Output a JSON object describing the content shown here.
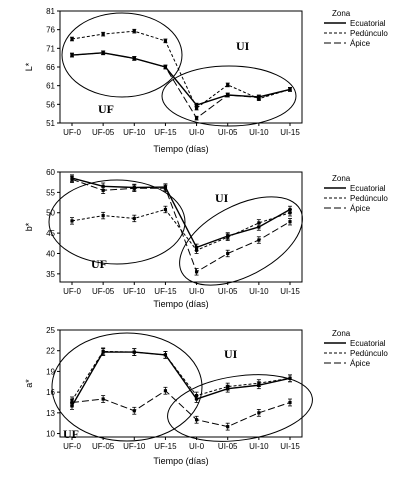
{
  "chart_data": [
    {
      "type": "line",
      "ylabel": "L*",
      "xlabel": "Tiempo (días)",
      "categories": [
        "UF-0",
        "UF-05",
        "UF-10",
        "UF-15",
        "UI-0",
        "UI-05",
        "UI-10",
        "UI-15"
      ],
      "ylim": [
        51,
        81
      ],
      "yticks": [
        51,
        56,
        61,
        66,
        71,
        76,
        81
      ],
      "legend_title": "Zona",
      "legend_position": "top-right",
      "zone_labels": [
        "UF",
        "UI"
      ],
      "series": [
        {
          "name": "Ecuatorial",
          "values": [
            69.2,
            69.8,
            68.3,
            66.0,
            55.8,
            58.5,
            58.0,
            60.0
          ],
          "errors": [
            0.5,
            0.5,
            0.5,
            0.5,
            0.5,
            0.5,
            0.5,
            0.5
          ]
        },
        {
          "name": "Pedúnculo",
          "values": [
            73.5,
            74.8,
            75.6,
            73.0,
            55.0,
            61.2,
            57.5,
            60.0
          ],
          "errors": [
            0.5,
            0.5,
            0.5,
            0.5,
            0.5,
            0.5,
            0.5,
            0.5
          ]
        },
        {
          "name": "Ápice",
          "values": [
            69.2,
            69.8,
            68.3,
            66.0,
            52.3,
            58.5,
            57.8,
            60.0
          ],
          "errors": [
            0.5,
            0.5,
            0.5,
            0.5,
            0.5,
            0.5,
            0.5,
            0.5
          ]
        }
      ]
    },
    {
      "type": "line",
      "ylabel": "b*",
      "xlabel": "Tiempo (días)",
      "categories": [
        "UF-0",
        "UF-05",
        "UF-10",
        "UF-15",
        "UI-0",
        "UI-05",
        "UI-10",
        "UI-15"
      ],
      "ylim": [
        33,
        60
      ],
      "yticks": [
        35,
        40,
        45,
        50,
        55,
        60
      ],
      "legend_title": "Zona",
      "legend_position": "top-right",
      "zone_labels": [
        "UF",
        "UI"
      ],
      "series": [
        {
          "name": "Ecuatorial",
          "values": [
            58.5,
            56.5,
            56.2,
            56.3,
            41.5,
            44.3,
            46.5,
            50.8
          ],
          "errors": [
            0.8,
            0.8,
            0.8,
            0.8,
            0.8,
            0.8,
            0.8,
            0.8
          ]
        },
        {
          "name": "Pedúnculo",
          "values": [
            48.0,
            49.3,
            48.6,
            50.8,
            40.8,
            44.0,
            47.5,
            50.0
          ],
          "errors": [
            0.8,
            0.8,
            0.8,
            0.8,
            0.8,
            0.8,
            0.8,
            0.8
          ]
        },
        {
          "name": "Ápice",
          "values": [
            58.2,
            55.5,
            56.0,
            56.0,
            35.5,
            40.0,
            43.3,
            47.8
          ],
          "errors": [
            0.8,
            0.8,
            0.8,
            0.8,
            0.8,
            0.8,
            0.8,
            0.8
          ]
        }
      ]
    },
    {
      "type": "line",
      "ylabel": "a*",
      "xlabel": "Tiempo (días)",
      "categories": [
        "UF-0",
        "UF-05",
        "UF-10",
        "UF-15",
        "UI-0",
        "UI-05",
        "UI-10",
        "UI-15"
      ],
      "ylim": [
        9.5,
        25
      ],
      "yticks": [
        10,
        13,
        16,
        19,
        22,
        25
      ],
      "legend_title": "Zona",
      "legend_position": "top-right",
      "zone_labels": [
        "UF",
        "UI"
      ],
      "series": [
        {
          "name": "Ecuatorial",
          "values": [
            14.0,
            21.8,
            21.8,
            21.4,
            15.0,
            16.5,
            17.0,
            18.0
          ],
          "errors": [
            0.5,
            0.5,
            0.5,
            0.5,
            0.5,
            0.5,
            0.5,
            0.5
          ]
        },
        {
          "name": "Pedúnculo",
          "values": [
            14.8,
            21.9,
            21.8,
            21.4,
            15.5,
            16.8,
            17.3,
            18.0
          ],
          "errors": [
            0.5,
            0.5,
            0.5,
            0.5,
            0.5,
            0.5,
            0.5,
            0.5
          ]
        },
        {
          "name": "Ápice",
          "values": [
            14.5,
            15.0,
            13.3,
            16.2,
            12.0,
            11.0,
            13.0,
            14.5
          ],
          "errors": [
            0.5,
            0.5,
            0.5,
            0.5,
            0.5,
            0.5,
            0.5,
            0.5
          ]
        }
      ]
    }
  ]
}
